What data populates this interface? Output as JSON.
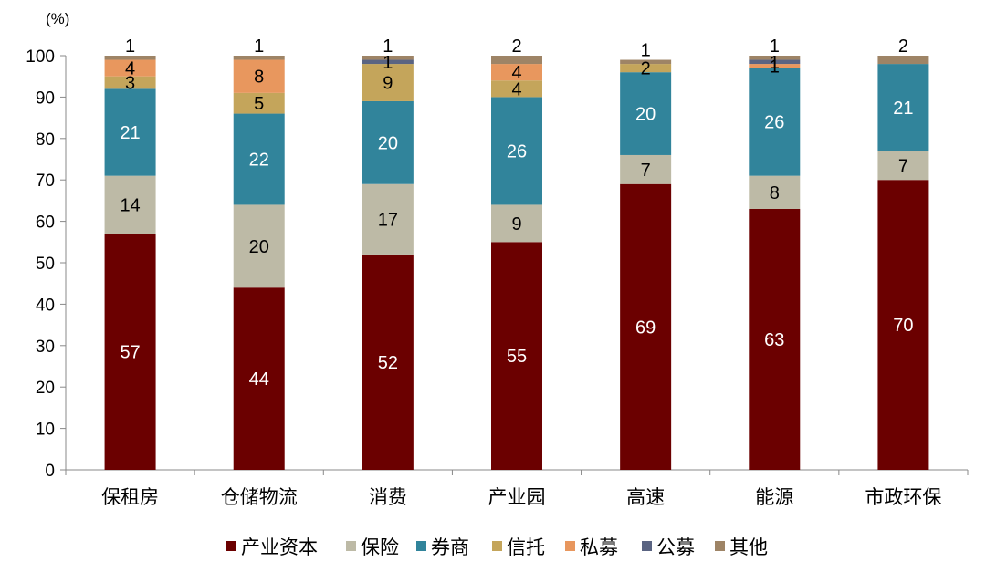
{
  "chart_data": {
    "type": "bar",
    "stacked": true,
    "unit_label": "(%)",
    "ylim": [
      0,
      100
    ],
    "yticks": [
      0,
      10,
      20,
      30,
      40,
      50,
      60,
      70,
      80,
      90,
      100
    ],
    "grid": false,
    "legend_position": "bottom",
    "categories": [
      "保租房",
      "仓储物流",
      "消费",
      "产业园",
      "高速",
      "能源",
      "市政环保"
    ],
    "series": [
      {
        "name": "产业资本",
        "color": "#6b0000",
        "values": [
          57,
          44,
          52,
          55,
          69,
          63,
          70
        ]
      },
      {
        "name": "保险",
        "color": "#bdbaa6",
        "values": [
          14,
          20,
          17,
          9,
          7,
          8,
          7
        ]
      },
      {
        "name": "券商",
        "color": "#31849b",
        "values": [
          21,
          22,
          20,
          26,
          20,
          26,
          21
        ]
      },
      {
        "name": "信托",
        "color": "#c4a55b",
        "values": [
          3,
          5,
          9,
          4,
          2,
          0,
          0
        ]
      },
      {
        "name": "私募",
        "color": "#e8975e",
        "values": [
          4,
          8,
          0,
          4,
          0,
          1,
          0
        ]
      },
      {
        "name": "公募",
        "color": "#5a6482",
        "values": [
          0,
          0,
          1,
          0,
          0,
          1,
          0
        ]
      },
      {
        "name": "其他",
        "color": "#9e8466",
        "values": [
          1,
          1,
          1,
          2,
          1,
          1,
          2
        ]
      }
    ],
    "data_labels": [
      {
        "category": "保租房",
        "series": "产业资本",
        "text": "57"
      },
      {
        "category": "保租房",
        "series": "保险",
        "text": "14"
      },
      {
        "category": "保租房",
        "series": "券商",
        "text": "21"
      },
      {
        "category": "保租房",
        "series": "信托",
        "text": "3"
      },
      {
        "category": "保租房",
        "series": "私募",
        "text": "4"
      },
      {
        "category": "保租房",
        "series": "其他",
        "text": "1"
      },
      {
        "category": "仓储物流",
        "series": "产业资本",
        "text": "44"
      },
      {
        "category": "仓储物流",
        "series": "保险",
        "text": "20"
      },
      {
        "category": "仓储物流",
        "series": "券商",
        "text": "22"
      },
      {
        "category": "仓储物流",
        "series": "信托",
        "text": "5"
      },
      {
        "category": "仓储物流",
        "series": "私募",
        "text": "8"
      },
      {
        "category": "仓储物流",
        "series": "其他",
        "text": "1"
      },
      {
        "category": "消费",
        "series": "产业资本",
        "text": "52"
      },
      {
        "category": "消费",
        "series": "保险",
        "text": "17"
      },
      {
        "category": "消费",
        "series": "券商",
        "text": "20"
      },
      {
        "category": "消费",
        "series": "信托",
        "text": "9"
      },
      {
        "category": "消费",
        "series": "公募",
        "text": "1"
      },
      {
        "category": "消费",
        "series": "其他",
        "text": "1"
      },
      {
        "category": "产业园",
        "series": "产业资本",
        "text": "55"
      },
      {
        "category": "产业园",
        "series": "保险",
        "text": "9"
      },
      {
        "category": "产业园",
        "series": "券商",
        "text": "26"
      },
      {
        "category": "产业园",
        "series": "信托",
        "text": "4"
      },
      {
        "category": "产业园",
        "series": "私募",
        "text": "4"
      },
      {
        "category": "产业园",
        "series": "其他",
        "text": "2"
      },
      {
        "category": "高速",
        "series": "产业资本",
        "text": "69"
      },
      {
        "category": "高速",
        "series": "保险",
        "text": "7"
      },
      {
        "category": "高速",
        "series": "券商",
        "text": "20"
      },
      {
        "category": "高速",
        "series": "信托",
        "text": "2"
      },
      {
        "category": "高速",
        "series": "其他",
        "text": "1"
      },
      {
        "category": "能源",
        "series": "产业资本",
        "text": "63"
      },
      {
        "category": "能源",
        "series": "保险",
        "text": "8"
      },
      {
        "category": "能源",
        "series": "券商",
        "text": "26"
      },
      {
        "category": "能源",
        "series": "私募",
        "text": "1"
      },
      {
        "category": "能源",
        "series": "公募",
        "text": "1"
      },
      {
        "category": "能源",
        "series": "其他",
        "text": "1"
      },
      {
        "category": "市政环保",
        "series": "产业资本",
        "text": "70"
      },
      {
        "category": "市政环保",
        "series": "保险",
        "text": "7"
      },
      {
        "category": "市政环保",
        "series": "券商",
        "text": "21"
      },
      {
        "category": "市政环保",
        "series": "其他",
        "text": "2"
      }
    ]
  }
}
